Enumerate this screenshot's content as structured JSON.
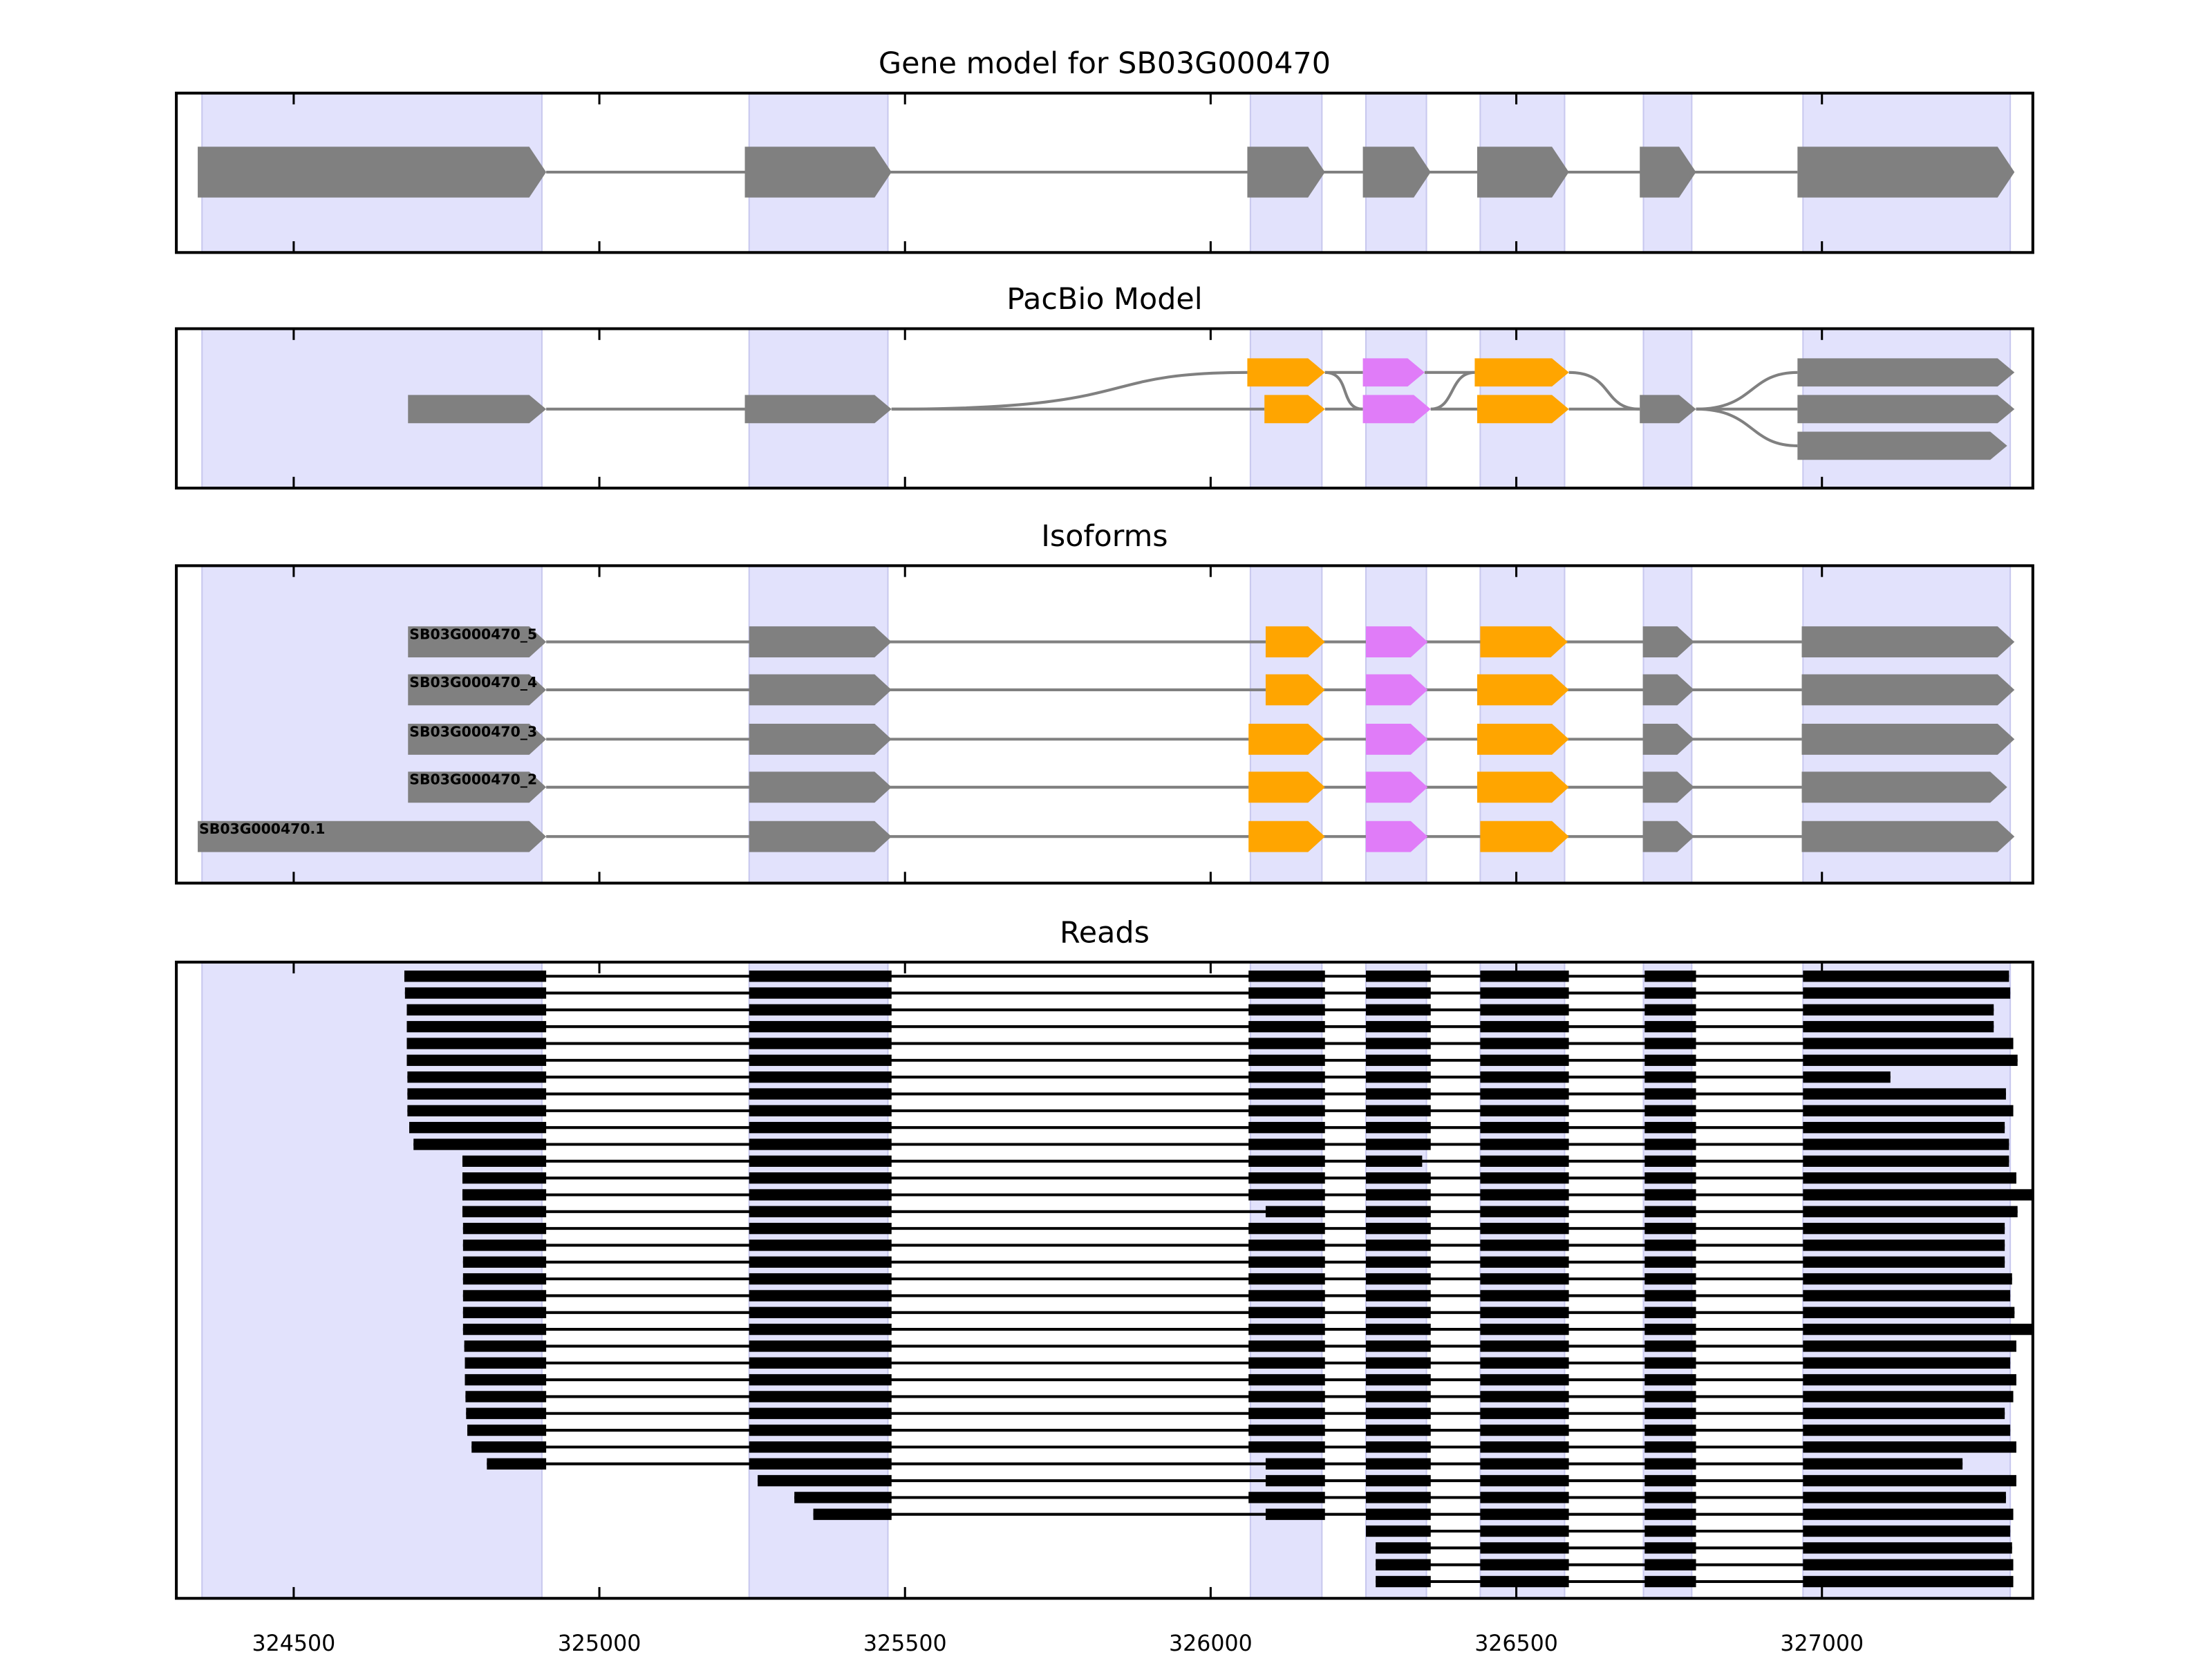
{
  "colors": {
    "shade": "#e2e2fc",
    "shade_edge": "#c8c8ee",
    "gray": "#808080",
    "orange": "#ffa500",
    "violet": "#e07cf8",
    "read": "#000000"
  },
  "chart_data": {
    "type": "gene-structure",
    "xlim": [
      324308,
      327345
    ],
    "xticks": [
      324500,
      325000,
      325500,
      326000,
      326500,
      327000
    ],
    "xtick_labels": [
      "324500",
      "325000",
      "325500",
      "326000",
      "326500",
      "327000"
    ],
    "shaded_exons": [
      [
        324350,
        324906
      ],
      [
        325245,
        325472
      ],
      [
        326065,
        326182
      ],
      [
        326254,
        326353
      ],
      [
        326441,
        326579
      ],
      [
        326708,
        326787
      ],
      [
        326969,
        327308
      ]
    ],
    "panels": [
      {
        "title": "Gene model for SB03G000470",
        "exons": [
          [
            324343,
            324913
          ],
          [
            325238,
            325478
          ],
          [
            326060,
            326187
          ],
          [
            326249,
            326360
          ],
          [
            326436,
            326586
          ],
          [
            326702,
            326794
          ],
          [
            326960,
            327315
          ]
        ]
      },
      {
        "title": "PacBio Model",
        "rows": [
          {
            "track": "top",
            "exons": [
              [
                326060,
                326187,
                "orange"
              ],
              [
                326249,
                326350,
                "violet"
              ],
              [
                326432,
                326586,
                "orange"
              ],
              [
                326960,
                327315,
                "gray"
              ]
            ]
          },
          {
            "track": "middle",
            "exons": [
              [
                324687,
                324913,
                "gray"
              ],
              [
                325238,
                325478,
                "gray"
              ],
              [
                326088,
                326187,
                "orange"
              ],
              [
                326249,
                326360,
                "violet"
              ],
              [
                326436,
                326586,
                "orange"
              ],
              [
                326702,
                326794,
                "gray"
              ],
              [
                326960,
                327315,
                "gray"
              ]
            ]
          },
          {
            "track": "bottom",
            "exons": [
              [
                326960,
                327303,
                "gray"
              ]
            ]
          }
        ]
      },
      {
        "title": "Isoforms",
        "isoforms": [
          {
            "name": "SB03G000470_5",
            "exons": [
              [
                324687,
                324913,
                "gray"
              ],
              [
                325245,
                325478,
                "gray"
              ],
              [
                326090,
                326187,
                "orange"
              ],
              [
                326254,
                326355,
                "violet"
              ],
              [
                326441,
                326584,
                "orange"
              ],
              [
                326707,
                326791,
                "gray"
              ],
              [
                326967,
                327315,
                "gray"
              ]
            ]
          },
          {
            "name": "SB03G000470_4",
            "exons": [
              [
                324687,
                324913,
                "gray"
              ],
              [
                325245,
                325478,
                "gray"
              ],
              [
                326090,
                326187,
                "orange"
              ],
              [
                326254,
                326355,
                "violet"
              ],
              [
                326436,
                326586,
                "orange"
              ],
              [
                326707,
                326791,
                "gray"
              ],
              [
                326967,
                327315,
                "gray"
              ]
            ]
          },
          {
            "name": "SB03G000470_3",
            "exons": [
              [
                324687,
                324913,
                "gray"
              ],
              [
                325245,
                325478,
                "gray"
              ],
              [
                326062,
                326187,
                "orange"
              ],
              [
                326254,
                326355,
                "violet"
              ],
              [
                326436,
                326586,
                "orange"
              ],
              [
                326707,
                326791,
                "gray"
              ],
              [
                326967,
                327315,
                "gray"
              ]
            ]
          },
          {
            "name": "SB03G000470_2",
            "exons": [
              [
                324687,
                324913,
                "gray"
              ],
              [
                325245,
                325478,
                "gray"
              ],
              [
                326062,
                326187,
                "orange"
              ],
              [
                326254,
                326355,
                "violet"
              ],
              [
                326436,
                326586,
                "orange"
              ],
              [
                326707,
                326791,
                "gray"
              ],
              [
                326967,
                327303,
                "gray"
              ]
            ]
          },
          {
            "name": "SB03G000470.1",
            "exons": [
              [
                324343,
                324913,
                "gray"
              ],
              [
                325245,
                325478,
                "gray"
              ],
              [
                326062,
                326187,
                "orange"
              ],
              [
                326254,
                326355,
                "violet"
              ],
              [
                326441,
                326586,
                "orange"
              ],
              [
                326707,
                326791,
                "gray"
              ],
              [
                326967,
                327315,
                "gray"
              ]
            ]
          }
        ]
      },
      {
        "title": "Reads",
        "read_exons": [
          [
            324300,
            324913
          ],
          [
            325245,
            325478
          ],
          [
            326062,
            326187
          ],
          [
            326254,
            326360
          ],
          [
            326441,
            326586
          ],
          [
            326710,
            326794
          ],
          [
            326969,
            327400
          ]
        ],
        "alt_exon3_start": 326090,
        "short_exon4_end": 326346,
        "reads": [
          {
            "start": 324681,
            "end": 327306
          },
          {
            "start": 324682,
            "end": 327308
          },
          {
            "start": 324685,
            "end": 327281
          },
          {
            "start": 324685,
            "end": 327281
          },
          {
            "start": 324685,
            "end": 327313
          },
          {
            "start": 324685,
            "end": 327320
          },
          {
            "start": 324686,
            "end": 327112
          },
          {
            "start": 324686,
            "end": 327301
          },
          {
            "start": 324686,
            "end": 327313
          },
          {
            "start": 324689,
            "end": 327299
          },
          {
            "start": 324696,
            "end": 327306
          },
          {
            "start": 324776,
            "end": 327306,
            "short4": true
          },
          {
            "start": 324776,
            "end": 327318
          },
          {
            "start": 324776,
            "end": 327355
          },
          {
            "start": 324776,
            "end": 327320,
            "alt3": true
          },
          {
            "start": 324777,
            "end": 327299
          },
          {
            "start": 324777,
            "end": 327299
          },
          {
            "start": 324777,
            "end": 327299
          },
          {
            "start": 324777,
            "end": 327311
          },
          {
            "start": 324777,
            "end": 327308
          },
          {
            "start": 324777,
            "end": 327315
          },
          {
            "start": 324777,
            "end": 327343
          },
          {
            "start": 324779,
            "end": 327318
          },
          {
            "start": 324780,
            "end": 327308
          },
          {
            "start": 324780,
            "end": 327318
          },
          {
            "start": 324781,
            "end": 327313
          },
          {
            "start": 324782,
            "end": 327299
          },
          {
            "start": 324784,
            "end": 327308
          },
          {
            "start": 324791,
            "end": 327318
          },
          {
            "start": 324816,
            "end": 327230,
            "alt3": true
          },
          {
            "start": 325259,
            "end": 327318,
            "alt3": true
          },
          {
            "start": 325319,
            "end": 327301
          },
          {
            "start": 325350,
            "end": 327313,
            "alt3": true
          },
          {
            "start": 326252,
            "end": 327308
          },
          {
            "start": 326270,
            "end": 327311
          },
          {
            "start": 326270,
            "end": 327313
          },
          {
            "start": 326270,
            "end": 327313
          }
        ]
      }
    ]
  }
}
